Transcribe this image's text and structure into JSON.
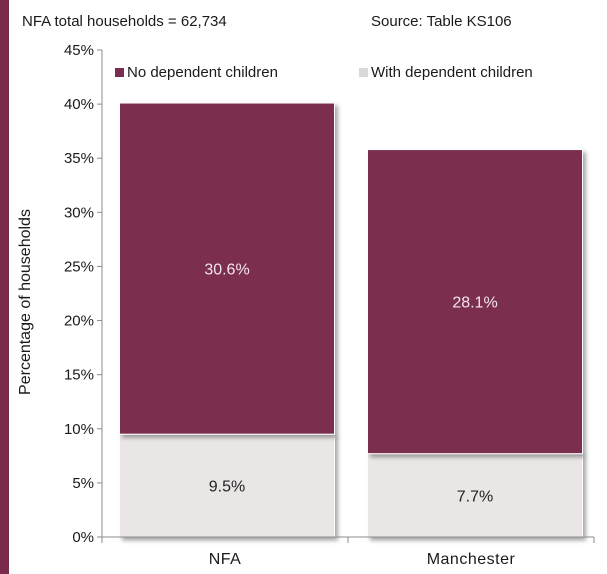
{
  "chart_data": {
    "type": "bar",
    "stacked": true,
    "categories": [
      "NFA",
      "Manchester"
    ],
    "series": [
      {
        "name": "With dependent children",
        "values": [
          9.5,
          7.7
        ],
        "color": "#eae6e6",
        "label_color": "#222222"
      },
      {
        "name": "No dependent children",
        "values": [
          30.6,
          28.1
        ],
        "color": "#7b2d50",
        "label_color": "#f3e6ec"
      }
    ],
    "data_labels": {
      "NFA": [
        "9.5%",
        "30.6%"
      ],
      "Manchester": [
        "7.7%",
        "28.1%"
      ]
    },
    "ylabel": "Percentage of households",
    "ylim": [
      0,
      45
    ],
    "yticks": [
      "0%",
      "5%",
      "10%",
      "15%",
      "20%",
      "25%",
      "30%",
      "35%",
      "40%",
      "45%"
    ],
    "grid": false,
    "legend_position": "top",
    "legend_order": [
      "No dependent children",
      "With dependent children"
    ],
    "annotations": {
      "left": "NFA total households = 62,734",
      "right": "Source: Table KS106"
    }
  }
}
